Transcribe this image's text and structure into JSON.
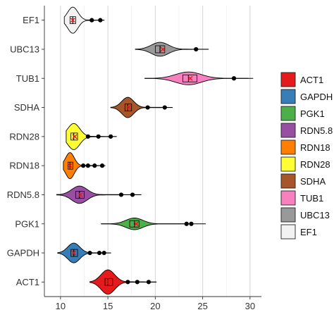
{
  "chart_data": {
    "type": "violin",
    "orientation": "horizontal",
    "title": "",
    "xlabel": "",
    "ylabel": "",
    "xlim": [
      8.3,
      31.2
    ],
    "x_ticks": [
      10,
      15,
      20,
      25,
      30
    ],
    "grid": true,
    "legend_position": "right",
    "categories": [
      "ACT1",
      "GAPDH",
      "PGK1",
      "RDN5.8",
      "RDN18",
      "RDN28",
      "SDHA",
      "TUB1",
      "UBC13",
      "EF1"
    ],
    "series": [
      {
        "name": "ACT1",
        "color": "#E41A1C",
        "min": 13.1,
        "max": 20.1,
        "q1": 14.7,
        "median": 15.0,
        "q3": 15.5,
        "mean": 15.1,
        "violin_width": 0.42,
        "outliers": [
          17.1,
          18.1,
          19.3
        ]
      },
      {
        "name": "GAPDH",
        "color": "#377EB8",
        "min": 9.7,
        "max": 15.3,
        "q1": 11.1,
        "median": 11.4,
        "q3": 11.8,
        "mean": 11.4,
        "violin_width": 0.34,
        "outliers": [
          13.1,
          14.1,
          14.6
        ]
      },
      {
        "name": "PGK1",
        "color": "#4DAF4A",
        "min": 14.3,
        "max": 25.3,
        "q1": 17.3,
        "median": 17.8,
        "q3": 18.3,
        "mean": 18.0,
        "violin_width": 0.2,
        "outliers": [
          23.3,
          23.8
        ]
      },
      {
        "name": "RDN5.8",
        "color": "#984EA3",
        "min": 9.6,
        "max": 18.5,
        "q1": 11.6,
        "median": 12.0,
        "q3": 12.5,
        "mean": 12.1,
        "violin_width": 0.3,
        "outliers": [
          16.4,
          17.6
        ]
      },
      {
        "name": "RDN18",
        "color": "#FF7F00",
        "min": 10.3,
        "max": 14.7,
        "q1": 10.8,
        "median": 11.0,
        "q3": 11.3,
        "mean": 11.0,
        "violin_width": 0.45,
        "outliers": [
          12.4,
          12.9,
          13.6,
          14.4
        ]
      },
      {
        "name": "RDN28",
        "color": "#FFFF33",
        "min": 10.6,
        "max": 15.9,
        "q1": 11.1,
        "median": 11.4,
        "q3": 11.8,
        "mean": 11.5,
        "violin_width": 0.45,
        "outliers": [
          12.9,
          14.0,
          15.3
        ]
      },
      {
        "name": "SDHA",
        "color": "#A65628",
        "min": 15.3,
        "max": 21.8,
        "q1": 16.8,
        "median": 17.1,
        "q3": 17.5,
        "mean": 17.2,
        "violin_width": 0.35,
        "outliers": [
          19.2,
          21.0
        ]
      },
      {
        "name": "TUB1",
        "color": "#F781BF",
        "min": 18.9,
        "max": 30.3,
        "q1": 22.9,
        "median": 23.5,
        "q3": 24.4,
        "mean": 23.7,
        "violin_width": 0.22,
        "outliers": [
          28.3
        ]
      },
      {
        "name": "UBC13",
        "color": "#999999",
        "min": 17.9,
        "max": 25.6,
        "q1": 20.0,
        "median": 20.5,
        "q3": 21.0,
        "mean": 20.8,
        "violin_width": 0.24,
        "outliers": [
          24.3
        ]
      },
      {
        "name": "EF1",
        "color": "#F2F2F2",
        "min": 10.4,
        "max": 14.6,
        "q1": 11.0,
        "median": 11.3,
        "q3": 11.6,
        "mean": 11.3,
        "violin_width": 0.45,
        "outliers": [
          13.3,
          14.2
        ]
      }
    ],
    "legend": {
      "entries": [
        "ACT1",
        "GAPDH",
        "PGK1",
        "RDN5.8",
        "RDN18",
        "RDN28",
        "SDHA",
        "TUB1",
        "UBC13",
        "EF1"
      ]
    }
  }
}
